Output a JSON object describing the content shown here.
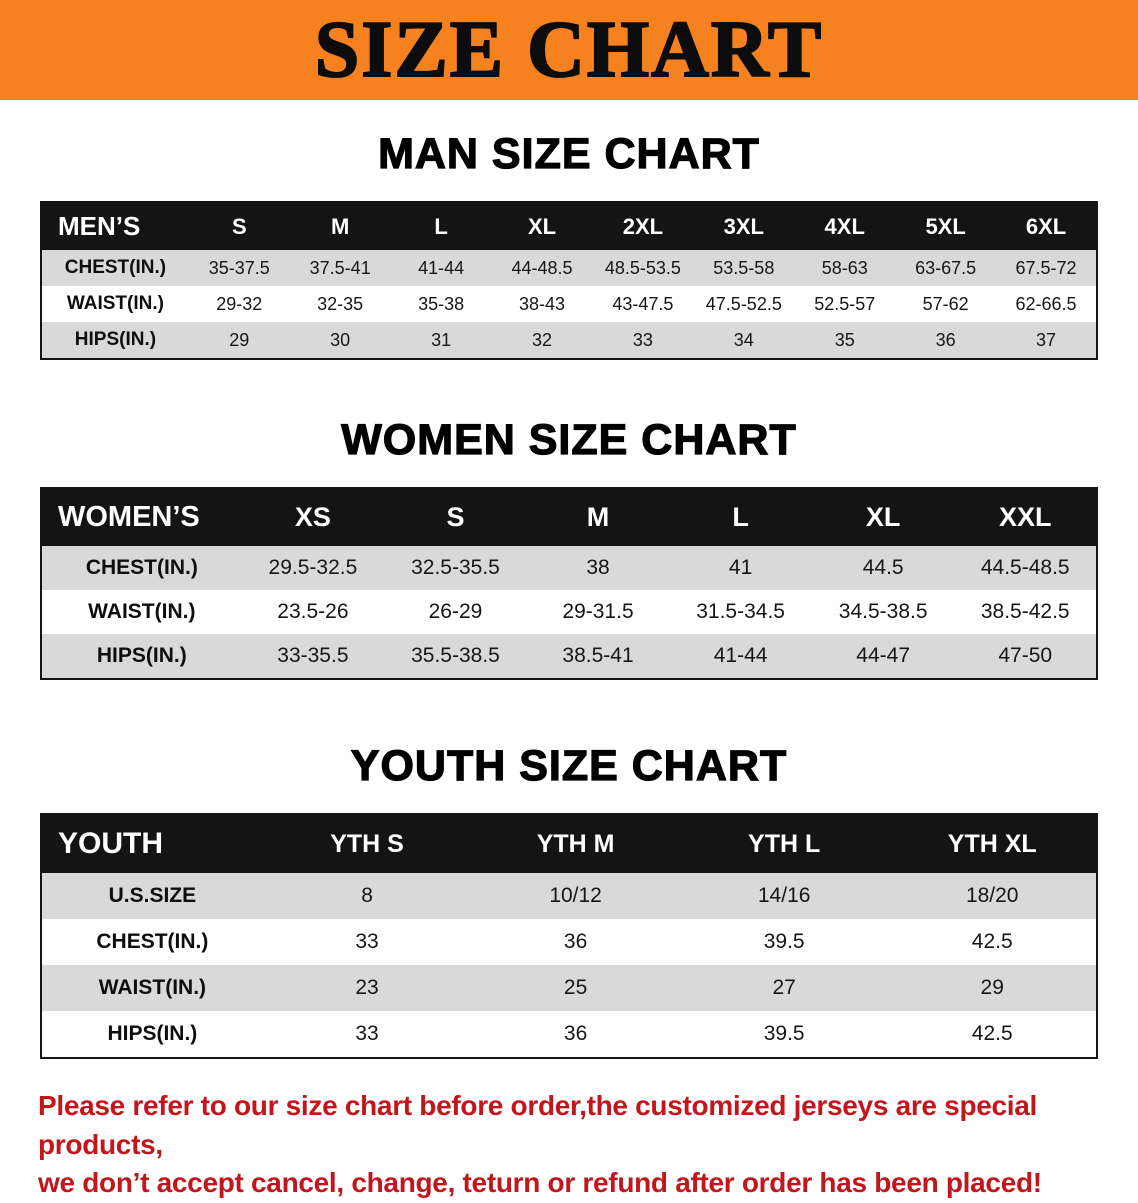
{
  "banner": {
    "title": "SIZE CHART"
  },
  "colors": {
    "banner_bg": "#F6821F",
    "header_bg": "#141414",
    "stripe": "#D9D9D9",
    "disclaimer_red": "#C3161C"
  },
  "men": {
    "heading": "MAN SIZE CHART",
    "table": {
      "header": [
        "MEN’S",
        "S",
        "M",
        "L",
        "XL",
        "2XL",
        "3XL",
        "4XL",
        "5XL",
        "6XL"
      ],
      "rows": [
        [
          "CHEST(IN.)",
          "35-37.5",
          "37.5-41",
          "41-44",
          "44-48.5",
          "48.5-53.5",
          "53.5-58",
          "58-63",
          "63-67.5",
          "67.5-72"
        ],
        [
          "WAIST(IN.)",
          "29-32",
          "32-35",
          "35-38",
          "38-43",
          "43-47.5",
          "47.5-52.5",
          "52.5-57",
          "57-62",
          "62-66.5"
        ],
        [
          "HIPS(IN.)",
          "29",
          "30",
          "31",
          "32",
          "33",
          "34",
          "35",
          "36",
          "37"
        ]
      ]
    }
  },
  "women": {
    "heading": "WOMEN SIZE CHART",
    "table": {
      "header": [
        "WOMEN’S",
        "XS",
        "S",
        "M",
        "L",
        "XL",
        "XXL"
      ],
      "rows": [
        [
          "CHEST(IN.)",
          "29.5-32.5",
          "32.5-35.5",
          "38",
          "41",
          "44.5",
          "44.5-48.5"
        ],
        [
          "WAIST(IN.)",
          "23.5-26",
          "26-29",
          "29-31.5",
          "31.5-34.5",
          "34.5-38.5",
          "38.5-42.5"
        ],
        [
          "HIPS(IN.)",
          "33-35.5",
          "35.5-38.5",
          "38.5-41",
          "41-44",
          "44-47",
          "47-50"
        ]
      ]
    }
  },
  "youth": {
    "heading": "YOUTH SIZE CHART",
    "table": {
      "header": [
        "YOUTH",
        "YTH S",
        "YTH M",
        "YTH L",
        "YTH XL"
      ],
      "rows": [
        [
          "U.S.SIZE",
          "8",
          "10/12",
          "14/16",
          "18/20"
        ],
        [
          "CHEST(IN.)",
          "33",
          "36",
          "39.5",
          "42.5"
        ],
        [
          "WAIST(IN.)",
          "23",
          "25",
          "27",
          "29"
        ],
        [
          "HIPS(IN.)",
          "33",
          "36",
          "39.5",
          "42.5"
        ]
      ]
    }
  },
  "disclaimer": {
    "line1": "Please refer to our size chart before order,the customized jerseys are special products,",
    "line2": "we don’t accept cancel, change, teturn or refund after order has been placed!"
  }
}
